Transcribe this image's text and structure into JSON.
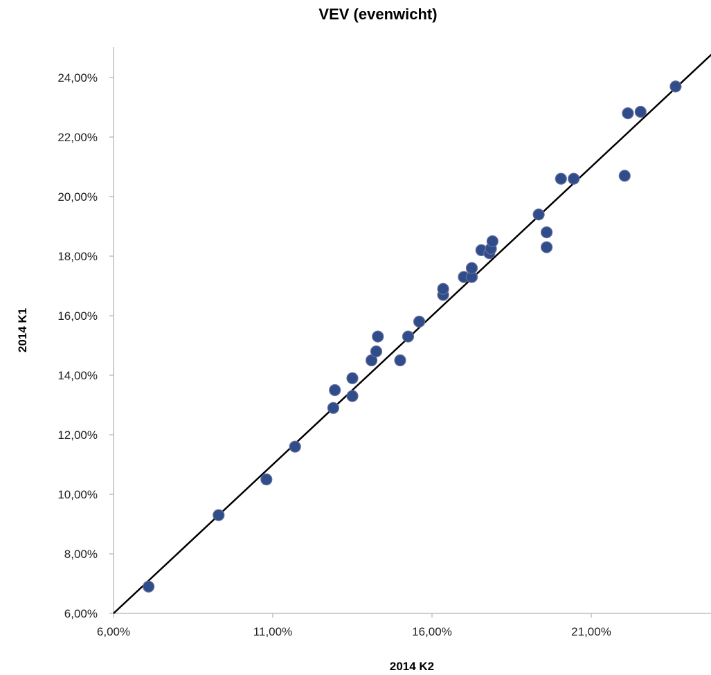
{
  "chart_data": {
    "type": "scatter",
    "title": "VEV (evenwicht)",
    "xlabel": "2014 K2",
    "ylabel": "2014 K1",
    "xlim": [
      0.06,
      0.25
    ],
    "ylim": [
      0.06,
      0.25
    ],
    "x_ticks": [
      0.06,
      0.11,
      0.16,
      0.21
    ],
    "x_tick_labels": [
      "6,00%",
      "11,00%",
      "16,00%",
      "21,00%"
    ],
    "y_ticks": [
      0.06,
      0.08,
      0.1,
      0.12,
      0.14,
      0.16,
      0.18,
      0.2,
      0.22,
      0.24
    ],
    "y_tick_labels": [
      "6,00%",
      "8,00%",
      "10,00%",
      "12,00%",
      "14,00%",
      "16,00%",
      "18,00%",
      "20,00%",
      "22,00%",
      "24,00%"
    ],
    "grid": false,
    "legend": "none",
    "reference_line": {
      "kind": "identity",
      "color": "#000000"
    },
    "marker_color": "#2e4d8a",
    "series": [
      {
        "x": [
          0.071,
          0.093,
          0.108,
          0.117,
          0.129,
          0.1295,
          0.135,
          0.135,
          0.141,
          0.1425,
          0.143,
          0.15,
          0.1525,
          0.156,
          0.1635,
          0.1635,
          0.17,
          0.1725,
          0.1725,
          0.1755,
          0.178,
          0.1785,
          0.179,
          0.1935,
          0.196,
          0.196,
          0.2005,
          0.2045,
          0.2205,
          0.2215,
          0.2255,
          0.2365
        ],
        "y": [
          0.069,
          0.093,
          0.105,
          0.116,
          0.129,
          0.135,
          0.133,
          0.139,
          0.145,
          0.148,
          0.153,
          0.145,
          0.153,
          0.158,
          0.167,
          0.169,
          0.173,
          0.173,
          0.176,
          0.182,
          0.181,
          0.1825,
          0.185,
          0.194,
          0.188,
          0.183,
          0.206,
          0.206,
          0.207,
          0.228,
          0.2285,
          0.237
        ]
      }
    ]
  }
}
